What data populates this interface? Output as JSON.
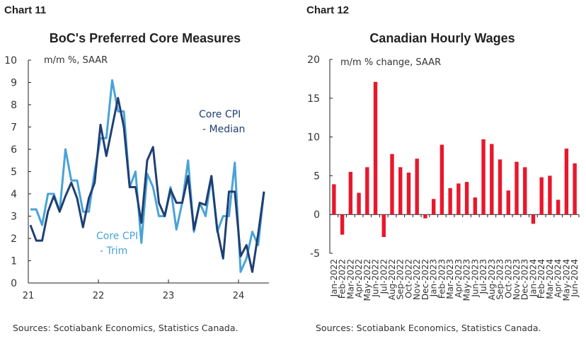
{
  "chart_data": [
    {
      "label": "Chart 11",
      "type": "line",
      "title": "BoC's Preferred Core Measures",
      "unit_label": "m/m %, SAAR",
      "ylim": [
        0,
        10
      ],
      "yticks": [
        0,
        1,
        2,
        3,
        4,
        5,
        6,
        7,
        8,
        9,
        10
      ],
      "xticks": [
        "21",
        "22",
        "23",
        "24"
      ],
      "x_start": "2021-01",
      "x_end": "2024-05",
      "series": [
        {
          "name": "Core CPI - Median",
          "name_lines": [
            "Core CPI",
            "- Median"
          ],
          "color": "#1f3f73",
          "values": [
            2.6,
            1.9,
            1.9,
            3.2,
            3.9,
            3.2,
            3.9,
            4.5,
            3.8,
            2.5,
            3.8,
            4.5,
            7.1,
            5.7,
            7.0,
            8.3,
            7.0,
            4.3,
            4.3,
            2.7,
            5.5,
            6.1,
            3.6,
            3.0,
            4.2,
            3.6,
            3.6,
            4.8,
            2.4,
            3.6,
            3.5,
            4.8,
            2.4,
            1.1,
            4.1,
            4.1,
            1.2,
            1.7,
            0.5,
            2.2,
            4.1
          ]
        },
        {
          "name": "Core CPI - Trim",
          "name_lines": [
            "Core CPI",
            "- Trim"
          ],
          "color": "#49a3d8",
          "values": [
            3.3,
            3.3,
            2.6,
            4.0,
            4.0,
            3.2,
            6.0,
            4.6,
            4.6,
            3.2,
            3.2,
            5.0,
            6.5,
            6.5,
            9.1,
            7.7,
            7.7,
            4.3,
            5.0,
            1.8,
            4.9,
            4.3,
            3.0,
            3.0,
            4.3,
            2.4,
            3.6,
            5.5,
            2.3,
            3.6,
            3.0,
            4.8,
            2.3,
            3.0,
            3.0,
            5.4,
            0.5,
            1.1,
            2.3,
            1.7,
            4.1
          ]
        }
      ],
      "source": "Sources: Scotiabank Economics, Statistics Canada."
    },
    {
      "label": "Chart 12",
      "type": "bar",
      "title": "Canadian Hourly Wages",
      "unit_label": "m/m % change, SAAR",
      "ylim": [
        -5,
        20
      ],
      "yticks": [
        -5,
        0,
        5,
        10,
        15,
        20
      ],
      "color": "#e8182c",
      "categories": [
        "Jan-2022",
        "Feb-2022",
        "Mar-2022",
        "Apr-2022",
        "May-2022",
        "Jun-2022",
        "Jul-2022",
        "Aug-2022",
        "Sep-2022",
        "Oct-2022",
        "Nov-2022",
        "Dec-2022",
        "Jan-2023",
        "Feb-2023",
        "Mar-2023",
        "Apr-2023",
        "May-2023",
        "Jun-2023",
        "Jul-2023",
        "Aug-2023",
        "Sep-2023",
        "Oct-2023",
        "Nov-2023",
        "Dec-2023",
        "Jan-2024",
        "Feb-2024",
        "Mar-2024",
        "Apr-2024",
        "May-2024",
        "Jun-2024"
      ],
      "values": [
        3.9,
        -2.6,
        5.5,
        2.8,
        6.1,
        17.1,
        -2.9,
        7.8,
        6.1,
        5.4,
        7.2,
        -0.5,
        2.0,
        9.0,
        3.4,
        4.0,
        4.2,
        2.2,
        9.7,
        9.1,
        7.1,
        3.1,
        6.8,
        6.1,
        -1.2,
        4.8,
        5.0,
        1.9,
        8.5,
        6.6
      ],
      "source": "Sources: Scotiabank Economics, Statistics Canada."
    }
  ]
}
